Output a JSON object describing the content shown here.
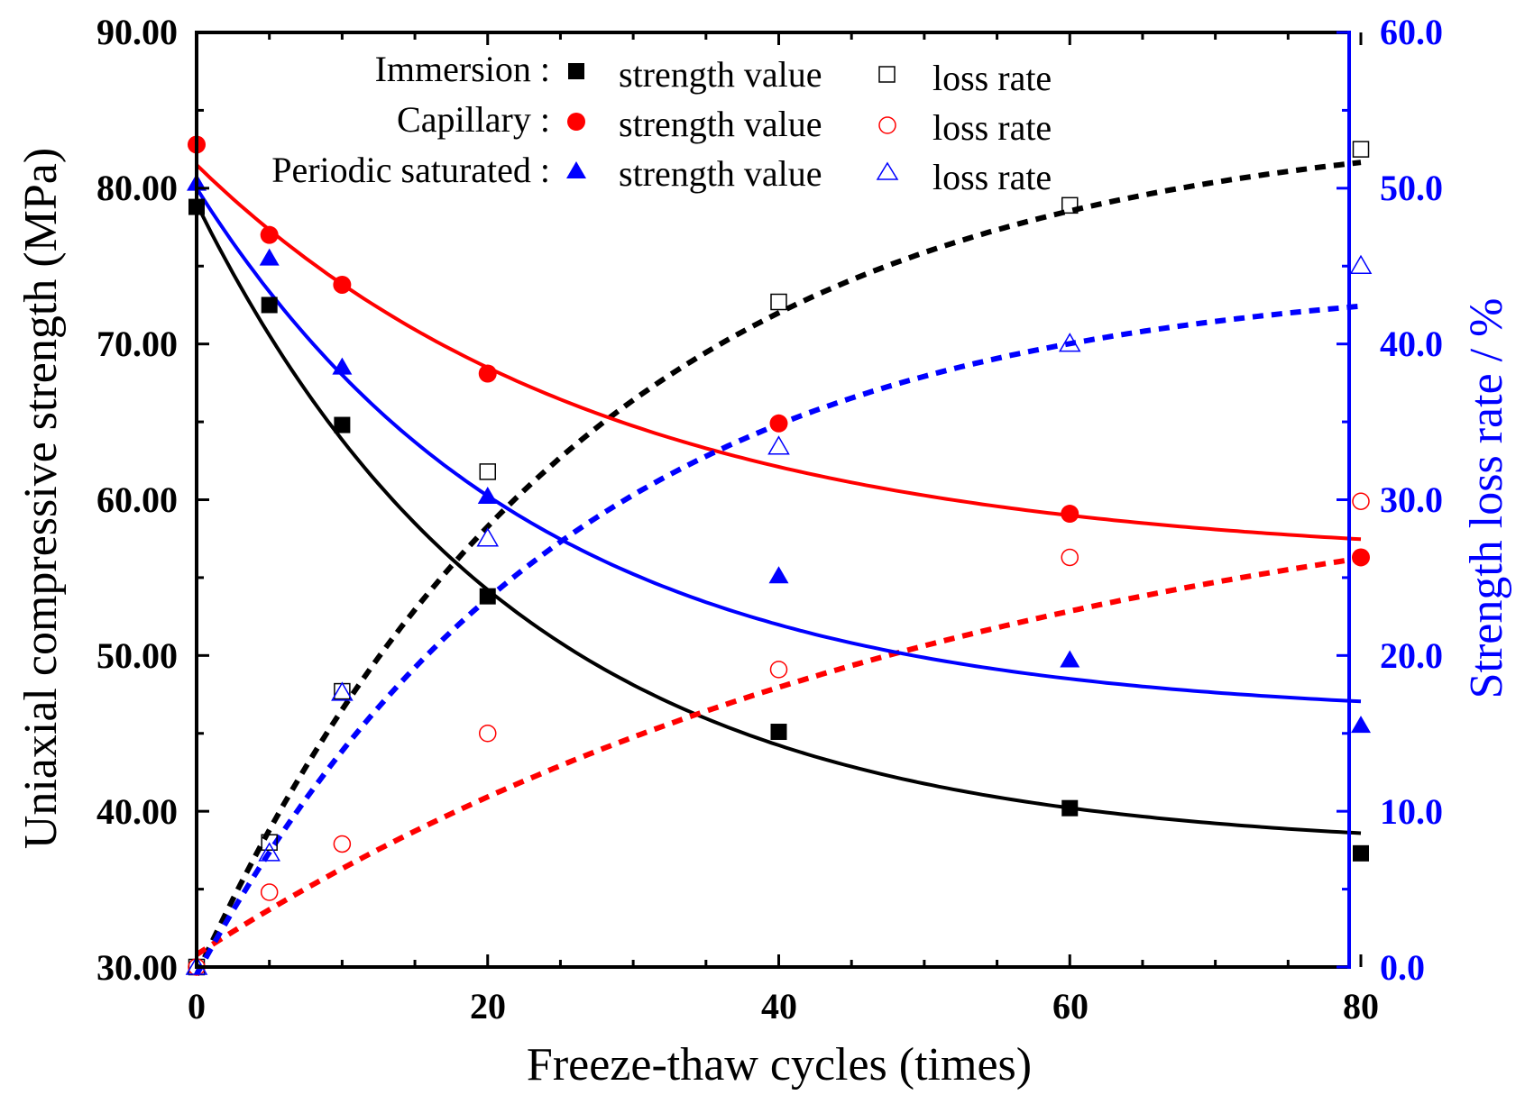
{
  "chart_data": {
    "type": "scatter",
    "xlabel": "Freeze-thaw cycles (times)",
    "ylabel": "Uniaxial compressive strength (MPa)",
    "y2label": "Strength loss rate / %",
    "xlim": [
      0,
      80
    ],
    "ylim": [
      30,
      90
    ],
    "y2lim": [
      0,
      60
    ],
    "x_ticks": [
      "0",
      "20",
      "40",
      "60",
      "80"
    ],
    "y_ticks": [
      "30.00",
      "40.00",
      "50.00",
      "60.00",
      "70.00",
      "80.00",
      "90.00"
    ],
    "y2_ticks": [
      "0.0",
      "10.0",
      "20.0",
      "30.0",
      "40.0",
      "50.0",
      "60.0"
    ],
    "grid": false,
    "legend_position": "top",
    "colors": {
      "axis_left": "#000000",
      "axis_right": "#0000ff",
      "immersion": "#000000",
      "capillary": "#ff0000",
      "periodic": "#0000ff"
    },
    "series": [
      {
        "key": "immersion",
        "group_label": "Immersion :",
        "strength_label": "strength value",
        "loss_label": "loss rate",
        "color": "#000000",
        "marker": "square",
        "x": [
          0,
          5,
          10,
          20,
          40,
          60,
          80
        ],
        "strength": [
          78.8,
          72.5,
          64.8,
          53.8,
          45.1,
          40.2,
          37.3
        ],
        "loss_rate": [
          0,
          8.0,
          17.7,
          31.8,
          42.7,
          48.9,
          52.5
        ],
        "strength_fit": [
          79,
          37.5,
          42.3,
          22
        ],
        "loss_fit": [
          -0.5,
          54.5,
          55,
          27
        ]
      },
      {
        "key": "capillary",
        "group_label": "Capillary :",
        "strength_label": "strength value",
        "loss_label": "loss rate",
        "color": "#ff0000",
        "marker": "circle",
        "x": [
          0,
          5,
          10,
          20,
          40,
          60,
          80
        ],
        "strength": [
          82.8,
          77.0,
          73.8,
          68.1,
          64.9,
          59.1,
          56.3
        ],
        "loss_rate": [
          0,
          4.8,
          7.9,
          15.0,
          19.1,
          26.3,
          29.9
        ],
        "strength_fit": [
          81.5,
          56,
          25.5,
          28
        ],
        "loss_fit": [
          0.8,
          34,
          33.2,
          55
        ]
      },
      {
        "key": "periodic",
        "group_label": "Periodic saturated :",
        "strength_label": "strength value",
        "loss_label": "loss rate",
        "color": "#0000ff",
        "marker": "triangle",
        "x": [
          0,
          5,
          10,
          20,
          40,
          60,
          80
        ],
        "strength": [
          80.3,
          75.5,
          68.5,
          60.2,
          55.1,
          49.7,
          45.5
        ],
        "loss_rate": [
          0,
          7.3,
          17.6,
          27.5,
          33.4,
          40.0,
          45.0
        ],
        "strength_fit": [
          80,
          46,
          34,
          23
        ],
        "loss_fit": [
          -0.5,
          44.5,
          45,
          26
        ]
      }
    ]
  }
}
